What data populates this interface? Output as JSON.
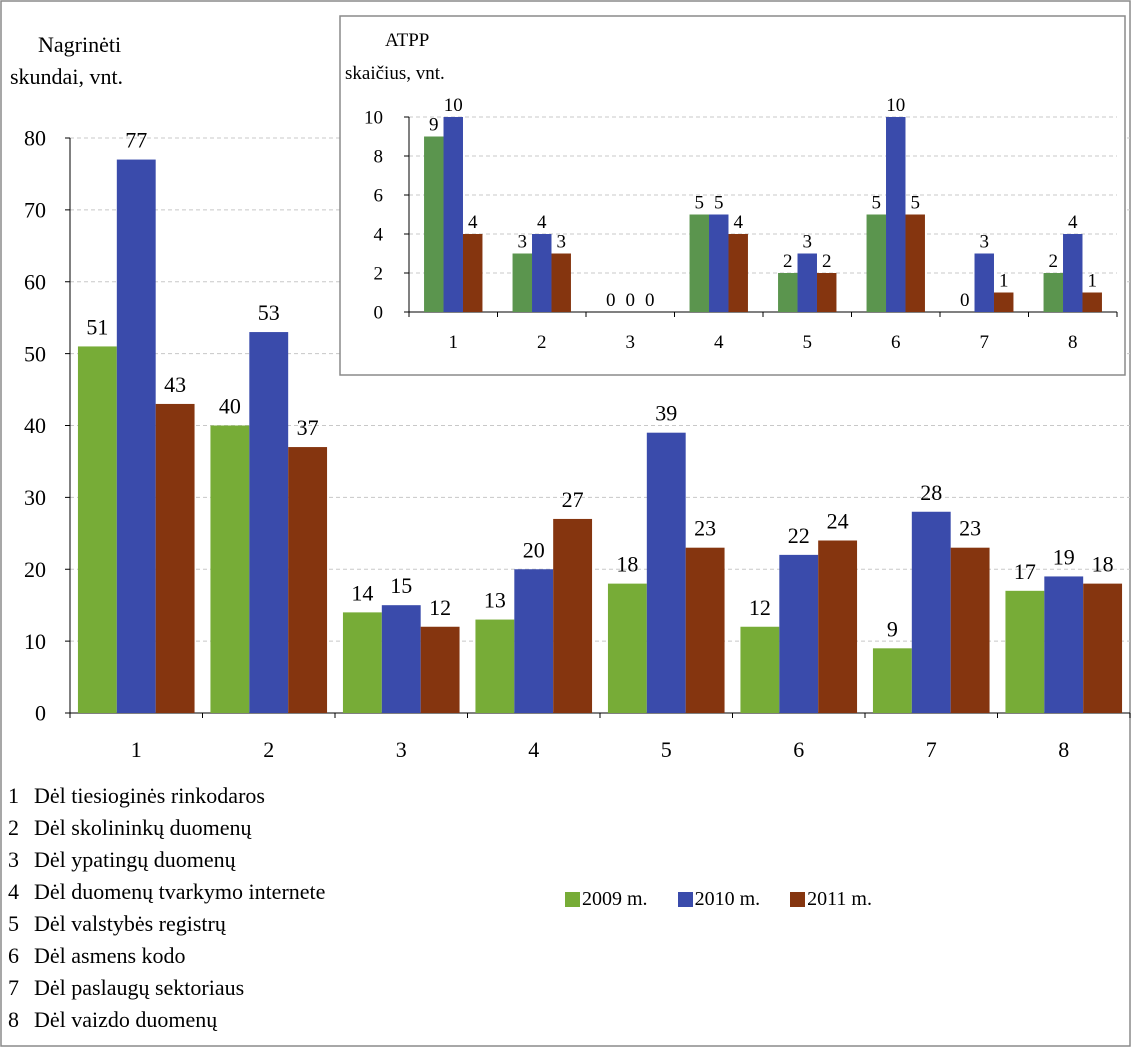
{
  "colors": {
    "green": "#77AC37",
    "blue": "#3A4BAB",
    "brown": "#85350F"
  },
  "legend": [
    {
      "label": "2009 m.",
      "color": "#77AC37"
    },
    {
      "label": "2010 m.",
      "color": "#3A4BAB"
    },
    {
      "label": "2011 m.",
      "color": "#85350F"
    }
  ],
  "category_labels": [
    {
      "num": "1",
      "text": "Dėl tiesioginės rinkodaros"
    },
    {
      "num": "2",
      "text": "Dėl skolininkų duomenų"
    },
    {
      "num": "3",
      "text": "Dėl ypatingų duomenų"
    },
    {
      "num": "4",
      "text": "Dėl duomenų tvarkymo internete"
    },
    {
      "num": "5",
      "text": "Dėl valstybės registrų"
    },
    {
      "num": "6",
      "text": "Dėl asmens kodo"
    },
    {
      "num": "7",
      "text": "Dėl paslaugų sektoriaus"
    },
    {
      "num": "8",
      "text": "Dėl vaizdo duomenų"
    }
  ],
  "chart_data": [
    {
      "type": "bar",
      "ylabel": "Nagrinėti skundai, vnt.",
      "ylabel_lines": [
        "Nagrinėti",
        "skundai, vnt."
      ],
      "categories": [
        "1",
        "2",
        "3",
        "4",
        "5",
        "6",
        "7",
        "8"
      ],
      "ylim": [
        0,
        80
      ],
      "yticks": [
        0,
        10,
        20,
        30,
        40,
        50,
        60,
        70,
        80
      ],
      "grid": true,
      "series": [
        {
          "name": "2009 m.",
          "color": "#77AC37",
          "values": [
            51,
            40,
            14,
            13,
            18,
            12,
            9,
            17
          ]
        },
        {
          "name": "2010 m.",
          "color": "#3A4BAB",
          "values": [
            77,
            53,
            15,
            20,
            39,
            22,
            28,
            19
          ]
        },
        {
          "name": "2011 m.",
          "color": "#85350F",
          "values": [
            43,
            37,
            12,
            27,
            23,
            24,
            23,
            18
          ]
        }
      ]
    },
    {
      "type": "bar",
      "ylabel": "ATPP skaičius, vnt.",
      "ylabel_lines": [
        "ATPP",
        "skaičius, vnt."
      ],
      "categories": [
        "1",
        "2",
        "3",
        "4",
        "5",
        "6",
        "7",
        "8"
      ],
      "ylim": [
        0,
        10
      ],
      "yticks": [
        0,
        2,
        4,
        6,
        8,
        10
      ],
      "grid": true,
      "series": [
        {
          "name": "2009 m.",
          "color": "#5B954E",
          "values": [
            9,
            3,
            0,
            5,
            2,
            5,
            0,
            2
          ]
        },
        {
          "name": "2010 m.",
          "color": "#3A4BAB",
          "values": [
            10,
            4,
            0,
            5,
            3,
            10,
            3,
            4
          ]
        },
        {
          "name": "2011 m.",
          "color": "#85350F",
          "values": [
            4,
            3,
            0,
            4,
            2,
            5,
            1,
            1
          ]
        }
      ]
    }
  ]
}
